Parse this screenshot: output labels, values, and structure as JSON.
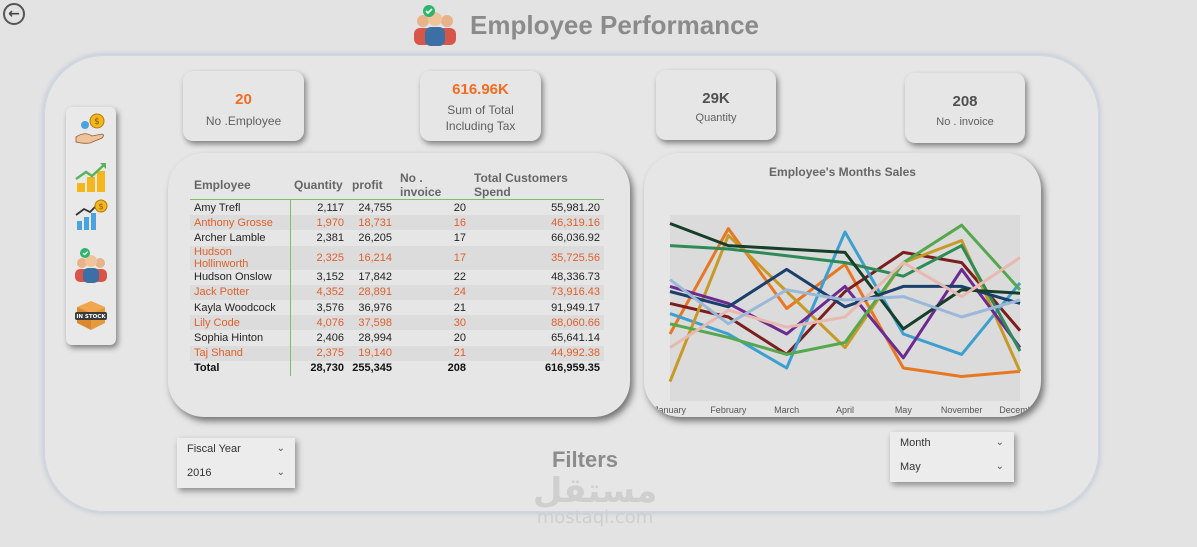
{
  "header": {
    "title": "Employee Performance"
  },
  "kpis": [
    {
      "value": "20",
      "label": "No .Employee",
      "color": "#f26c22"
    },
    {
      "value": "616.96K",
      "label": "Sum of Total Including Tax",
      "color": "#f26c22"
    },
    {
      "value": "29K",
      "label": "Quantity",
      "color": "#505050"
    },
    {
      "value": "208",
      "label": "No . invoice",
      "color": "#505050"
    }
  ],
  "table": {
    "columns": [
      "Employee",
      "Quantity",
      "profit",
      "No . invoice",
      "Total Customers Spend"
    ],
    "rows": [
      [
        "Amy Trefl",
        "2,117",
        "24,755",
        "20",
        "55,981.20"
      ],
      [
        "Anthony Grosse",
        "1,970",
        "18,731",
        "16",
        "46,319.16"
      ],
      [
        "Archer Lamble",
        "2,381",
        "26,205",
        "17",
        "66,036.92"
      ],
      [
        "Hudson Hollinworth",
        "2,325",
        "16,214",
        "17",
        "35,725.56"
      ],
      [
        "Hudson Onslow",
        "3,152",
        "17,842",
        "22",
        "48,336.73"
      ],
      [
        "Jack Potter",
        "4,352",
        "28,891",
        "24",
        "73,916.43"
      ],
      [
        "Kayla Woodcock",
        "3,576",
        "36,976",
        "21",
        "91,949.17"
      ],
      [
        "Lily Code",
        "4,076",
        "37,598",
        "30",
        "88,060.66"
      ],
      [
        "Sophia Hinton",
        "2,406",
        "28,994",
        "20",
        "65,641.14"
      ],
      [
        "Taj Shand",
        "2,375",
        "19,140",
        "21",
        "44,992.38"
      ]
    ],
    "total": [
      "Total",
      "28,730",
      "255,345",
      "208",
      "616,959.35"
    ]
  },
  "chart_data": {
    "type": "line",
    "title": "Employee's Months Sales",
    "x": [
      "January",
      "February",
      "March",
      "April",
      "May",
      "November",
      "December"
    ],
    "ylim": [
      0,
      100
    ],
    "grid": false,
    "legend": "none",
    "series": [
      {
        "color": "#e87722",
        "values": [
          30,
          92,
          45,
          71,
          10,
          5,
          8
        ]
      },
      {
        "color": "#7a1e1e",
        "values": [
          48,
          40,
          18,
          55,
          78,
          72,
          32
        ]
      },
      {
        "color": "#3d9fd0",
        "values": [
          42,
          30,
          10,
          90,
          30,
          18,
          60
        ]
      },
      {
        "color": "#c79a28",
        "values": [
          2,
          88,
          55,
          22,
          72,
          85,
          8
        ]
      },
      {
        "color": "#6a2a91",
        "values": [
          58,
          48,
          30,
          58,
          16,
          68,
          22
        ]
      },
      {
        "color": "#2e8b57",
        "values": [
          82,
          80,
          76,
          72,
          64,
          82,
          20
        ]
      },
      {
        "color": "#56a84e",
        "values": [
          36,
          28,
          18,
          25,
          72,
          94,
          56
        ]
      },
      {
        "color": "#1b3f6b",
        "values": [
          55,
          46,
          68,
          46,
          58,
          58,
          48
        ]
      },
      {
        "color": "#163e2a",
        "values": [
          95,
          82,
          80,
          78,
          33,
          56,
          54
        ]
      },
      {
        "color": "#e7b9b0",
        "values": [
          22,
          44,
          34,
          40,
          72,
          52,
          75
        ]
      },
      {
        "color": "#9bb8d8",
        "values": [
          62,
          36,
          56,
          50,
          52,
          40,
          50
        ]
      }
    ]
  },
  "filters": {
    "title": "Filters",
    "left": {
      "label": "Fiscal Year",
      "value": "2016"
    },
    "right": {
      "label": "Month",
      "value": "May"
    }
  },
  "watermark": {
    "arabic": "مستقل",
    "latin": "mostaql.com"
  }
}
